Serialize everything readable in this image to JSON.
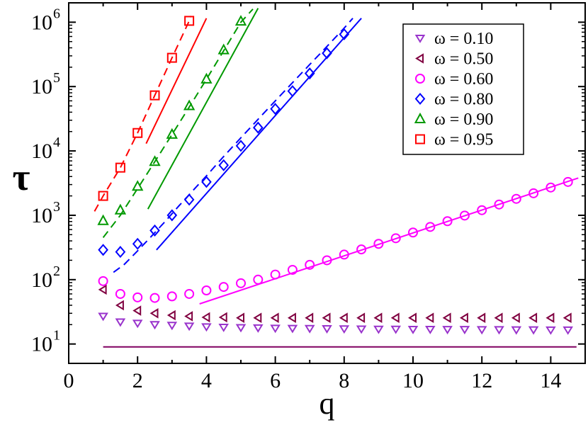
{
  "chart_data": {
    "type": "scatter",
    "title": "",
    "xlabel": "q",
    "ylabel": "τ",
    "xlim": [
      0,
      15
    ],
    "ylim": [
      5,
      2000000
    ],
    "yscale": "log",
    "grid": false,
    "legend_position": "top-right",
    "x_ticks": [
      0,
      2,
      4,
      6,
      8,
      10,
      12,
      14
    ],
    "y_ticks": [
      {
        "value": 10,
        "label": "10",
        "exp": "1"
      },
      {
        "value": 100,
        "label": "10",
        "exp": "2"
      },
      {
        "value": 1000,
        "label": "10",
        "exp": "3"
      },
      {
        "value": 10000,
        "label": "10",
        "exp": "4"
      },
      {
        "value": 100000,
        "label": "10",
        "exp": "5"
      },
      {
        "value": 1000000,
        "label": "10",
        "exp": "6"
      }
    ],
    "series": [
      {
        "name": "ω = 0.10",
        "marker": "triangle-down",
        "color": "#9933cc",
        "x": [
          1,
          1.5,
          2,
          2.5,
          3,
          3.5,
          4,
          4.5,
          5,
          5.5,
          6,
          6.5,
          7,
          7.5,
          8,
          8.5,
          9,
          9.5,
          10,
          10.5,
          11,
          11.5,
          12,
          12.5,
          13,
          13.5,
          14,
          14.5
        ],
        "y": [
          27,
          22,
          21,
          20,
          19.5,
          19,
          18.5,
          18.2,
          18,
          17.8,
          17.6,
          17.5,
          17.4,
          17.3,
          17.2,
          17.1,
          17,
          17,
          16.9,
          16.9,
          16.8,
          16.8,
          16.7,
          16.7,
          16.6,
          16.6,
          16.5,
          16.5
        ]
      },
      {
        "name": "ω = 0.50",
        "marker": "triangle-left",
        "color": "#800040",
        "x": [
          1,
          1.5,
          2,
          2.5,
          3,
          3.5,
          4,
          4.5,
          5,
          5.5,
          6,
          6.5,
          7,
          7.5,
          8,
          8.5,
          9,
          9.5,
          10,
          10.5,
          11,
          11.5,
          12,
          12.5,
          13,
          13.5,
          14,
          14.5
        ],
        "y": [
          70,
          40,
          33,
          30,
          28,
          27,
          26,
          26,
          25.5,
          25.5,
          25.5,
          25.5,
          25.5,
          25.5,
          25.5,
          25.5,
          25.5,
          25.5,
          25.5,
          25.5,
          25.5,
          25.5,
          25.5,
          25.5,
          25.5,
          25.5,
          25.5,
          25.5
        ]
      },
      {
        "name": "ω = 0.60",
        "marker": "circle",
        "color": "#ff00ff",
        "x": [
          1,
          1.5,
          2,
          2.5,
          3,
          3.5,
          4,
          4.5,
          5,
          5.5,
          6,
          6.5,
          7,
          7.5,
          8,
          8.5,
          9,
          9.5,
          10,
          10.5,
          11,
          11.5,
          12,
          12.5,
          13,
          13.5,
          14,
          14.5
        ],
        "y": [
          95,
          60,
          53,
          52,
          55,
          60,
          68,
          77,
          88,
          100,
          120,
          142,
          170,
          200,
          245,
          295,
          360,
          440,
          540,
          660,
          810,
          990,
          1200,
          1470,
          1800,
          2200,
          2700,
          3300
        ]
      },
      {
        "name": "ω = 0.80",
        "marker": "diamond",
        "color": "#0000ff",
        "x": [
          1,
          1.5,
          2,
          2.5,
          3,
          3.5,
          4,
          4.5,
          5,
          5.5,
          6,
          6.5,
          7,
          7.5,
          8
        ],
        "y": [
          290,
          270,
          360,
          580,
          1000,
          1750,
          3300,
          6000,
          12000,
          23000,
          45000,
          85000,
          160000,
          330000,
          650000
        ]
      },
      {
        "name": "ω = 0.90",
        "marker": "triangle-up",
        "color": "#009900",
        "x": [
          1,
          1.5,
          2,
          2.5,
          3,
          3.5,
          4,
          4.5,
          5
        ],
        "y": [
          820,
          1200,
          2800,
          6800,
          18000,
          50000,
          130000,
          370000,
          1030000
        ]
      },
      {
        "name": "ω = 0.95",
        "marker": "square",
        "color": "#ff0000",
        "x": [
          1,
          1.5,
          2,
          2.5,
          3,
          3.5
        ],
        "y": [
          2000,
          5500,
          19000,
          73000,
          280000,
          1050000
        ]
      }
    ],
    "lines": [
      {
        "color": "#0000ff",
        "dash": true,
        "x": [
          1.3,
          1.6,
          2,
          2.4,
          2.8,
          3.2,
          3.6,
          4,
          4.5,
          5,
          5.5,
          6,
          6.5,
          7,
          7.5,
          8,
          8.25
        ],
        "y": [
          130,
          170,
          280,
          470,
          800,
          1400,
          2400,
          4100,
          8200,
          16000,
          31000,
          60000,
          115000,
          220000,
          420000,
          810000,
          1150000
        ]
      },
      {
        "color": "#0000ff",
        "dash": false,
        "x": [
          2.55,
          8.5
        ],
        "y": [
          290,
          1150000
        ]
      },
      {
        "color": "#009900",
        "dash": true,
        "x": [
          1,
          1.5,
          2,
          2.5,
          3,
          3.5,
          4,
          4.5,
          5,
          5.35
        ],
        "y": [
          450,
          1000,
          2600,
          6800,
          18000,
          48000,
          130000,
          360000,
          1000000,
          1600000
        ]
      },
      {
        "color": "#009900",
        "dash": false,
        "x": [
          2.3,
          5.5
        ],
        "y": [
          1250,
          1650000
        ]
      },
      {
        "color": "#ff0000",
        "dash": true,
        "x": [
          0.75,
          1,
          1.5,
          2,
          2.5,
          3,
          3.5,
          3.55
        ],
        "y": [
          1150,
          2000,
          5500,
          19000,
          73000,
          280000,
          1050000,
          1250000
        ]
      },
      {
        "color": "#ff0000",
        "dash": false,
        "x": [
          2.25,
          4
        ],
        "y": [
          13000,
          1150000
        ]
      },
      {
        "color": "#ff00ff",
        "dash": false,
        "x": [
          3.8,
          14.8
        ],
        "y": [
          42,
          3800
        ]
      },
      {
        "color": "#800060",
        "dash": false,
        "x": [
          1,
          14.75
        ],
        "y": [
          9,
          9
        ]
      }
    ]
  }
}
